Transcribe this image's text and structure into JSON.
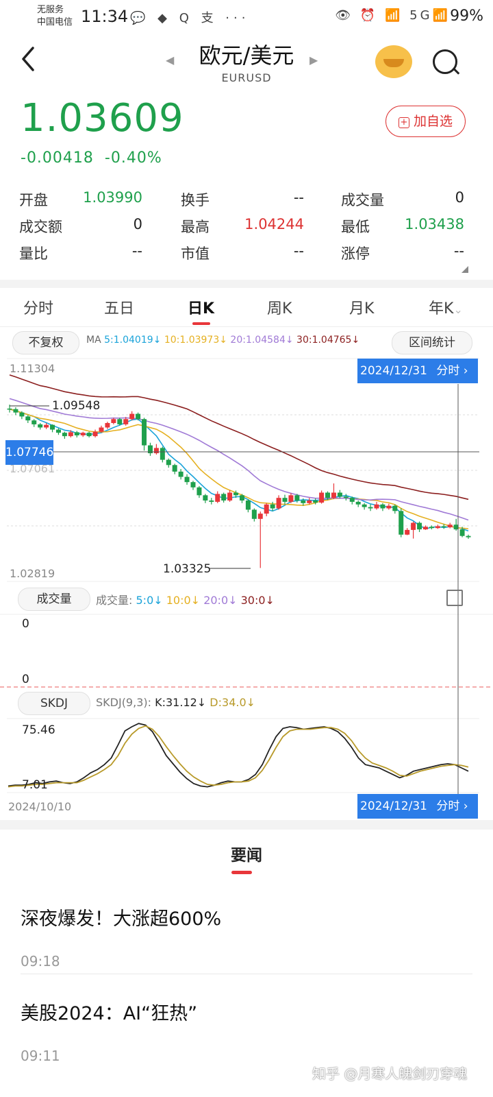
{
  "status_bar": {
    "carrier_top": "无服务",
    "carrier_bottom": "中国电信",
    "time": "11:34",
    "app_icons": "💬 ◆ Q 支 ···",
    "right_icons": "👁 ⏰ 📶 5G📶",
    "battery": "99%"
  },
  "header": {
    "title": "欧元/美元",
    "subtitle": "EURUSD",
    "back_icon": "chevron-left-icon",
    "search_icon": "search-icon"
  },
  "quote": {
    "price": "1.03609",
    "change": "-0.00418",
    "change_pct": "-0.40%",
    "add_label": "加自选",
    "price_color": "#1fa04c"
  },
  "stats": [
    {
      "label": "开盘",
      "value": "1.03990",
      "color": "grn"
    },
    {
      "label": "换手",
      "value": "--",
      "color": ""
    },
    {
      "label": "成交量",
      "value": "0",
      "color": ""
    },
    {
      "label": "成交额",
      "value": "0",
      "color": ""
    },
    {
      "label": "最高",
      "value": "1.04244",
      "color": "red"
    },
    {
      "label": "最低",
      "value": "1.03438",
      "color": "grn"
    },
    {
      "label": "量比",
      "value": "--",
      "color": ""
    },
    {
      "label": "市值",
      "value": "--",
      "color": ""
    },
    {
      "label": "涨停",
      "value": "--",
      "color": ""
    }
  ],
  "tabs": [
    "分时",
    "五日",
    "日K",
    "周K",
    "月K",
    "年K"
  ],
  "active_tab": "日K",
  "chart_controls": {
    "adjust": "不复权",
    "ma_prefix": "MA",
    "ma5": "5:1.04019↓",
    "ma10": "10:1.03973↓",
    "ma20": "20:1.04584↓",
    "ma30": "30:1.04765↓",
    "range_stats": "区间统计"
  },
  "chart_data": {
    "type": "candlestick",
    "date_start": "2024/10/10",
    "date_end": "2024/12/31",
    "y_top": "1.11304",
    "y_bottom": "1.02819",
    "ylim": [
      1.02819,
      1.11304
    ],
    "crosshair_value": "1.07746",
    "hidden_tick": "1.07061",
    "max_label": "1.09548",
    "min_label": "1.03325",
    "cursor_date": "2024/12/31",
    "cursor_link": "分时",
    "ma_colors": {
      "ma5": "#1aa3d9",
      "ma10": "#e5b021",
      "ma20": "#a07ad6",
      "ma30": "#8b1e1e"
    },
    "candles": [
      [
        1.094,
        1.0938,
        1.0955,
        1.0925
      ],
      [
        1.0938,
        1.0925,
        1.0945,
        1.0915
      ],
      [
        1.0925,
        1.091,
        1.093,
        1.09
      ],
      [
        1.091,
        1.0895,
        1.0915,
        1.0885
      ],
      [
        1.0895,
        1.088,
        1.09,
        1.087
      ],
      [
        1.088,
        1.0868,
        1.0885,
        1.086
      ],
      [
        1.0868,
        1.0878,
        1.0885,
        1.0862
      ],
      [
        1.0878,
        1.086,
        1.088,
        1.085
      ],
      [
        1.086,
        1.0848,
        1.0865,
        1.084
      ],
      [
        1.0848,
        1.0835,
        1.0852,
        1.0825
      ],
      [
        1.0835,
        1.085,
        1.0858,
        1.083
      ],
      [
        1.085,
        1.0838,
        1.0855,
        1.083
      ],
      [
        1.0838,
        1.0848,
        1.0852,
        1.0832
      ],
      [
        1.0848,
        1.0835,
        1.0852,
        1.083
      ],
      [
        1.0835,
        1.0852,
        1.086,
        1.083
      ],
      [
        1.0852,
        1.0868,
        1.0875,
        1.0848
      ],
      [
        1.0868,
        1.0885,
        1.089,
        1.0862
      ],
      [
        1.0885,
        1.09,
        1.0905,
        1.088
      ],
      [
        1.09,
        1.088,
        1.0905,
        1.0875
      ],
      [
        1.088,
        1.09,
        1.0908,
        1.0875
      ],
      [
        1.09,
        1.092,
        1.093,
        1.0895
      ],
      [
        1.092,
        1.09,
        1.0925,
        1.0895
      ],
      [
        1.09,
        1.08,
        1.0905,
        1.078
      ],
      [
        1.08,
        1.077,
        1.081,
        1.076
      ],
      [
        1.077,
        1.079,
        1.0805,
        1.0765
      ],
      [
        1.079,
        1.0745,
        1.0795,
        1.0735
      ],
      [
        1.0745,
        1.0725,
        1.075,
        1.0715
      ],
      [
        1.0725,
        1.07,
        1.073,
        1.069
      ],
      [
        1.07,
        1.068,
        1.071,
        1.067
      ],
      [
        1.068,
        1.066,
        1.069,
        1.065
      ],
      [
        1.066,
        1.064,
        1.0665,
        1.063
      ],
      [
        1.064,
        1.061,
        1.0645,
        1.06
      ],
      [
        1.061,
        1.059,
        1.0615,
        1.058
      ],
      [
        1.059,
        1.0585,
        1.06,
        1.0575
      ],
      [
        1.0585,
        1.0615,
        1.0625,
        1.058
      ],
      [
        1.0615,
        1.059,
        1.062,
        1.0582
      ],
      [
        1.059,
        1.062,
        1.063,
        1.0585
      ],
      [
        1.062,
        1.061,
        1.0628,
        1.06
      ],
      [
        1.061,
        1.059,
        1.0615,
        1.058
      ],
      [
        1.059,
        1.0555,
        1.0595,
        1.0545
      ],
      [
        1.0555,
        1.052,
        1.056,
        1.051
      ],
      [
        1.052,
        1.054,
        1.0548,
        1.0333
      ],
      [
        1.054,
        1.0575,
        1.058,
        1.053
      ],
      [
        1.0575,
        1.056,
        1.0585,
        1.055
      ],
      [
        1.056,
        1.06,
        1.061,
        1.0555
      ],
      [
        1.06,
        1.0585,
        1.0612,
        1.0575
      ],
      [
        1.0585,
        1.061,
        1.0618,
        1.058
      ],
      [
        1.061,
        1.059,
        1.0615,
        1.0582
      ],
      [
        1.059,
        1.058,
        1.0598,
        1.057
      ],
      [
        1.058,
        1.059,
        1.06,
        1.0575
      ],
      [
        1.059,
        1.0582,
        1.0598,
        1.0575
      ],
      [
        1.0582,
        1.062,
        1.0628,
        1.0578
      ],
      [
        1.062,
        1.06,
        1.0625,
        1.0592
      ],
      [
        1.06,
        1.062,
        1.0655,
        1.0595
      ],
      [
        1.062,
        1.0605,
        1.063,
        1.0598
      ],
      [
        1.0605,
        1.06,
        1.0615,
        1.059
      ],
      [
        1.06,
        1.0585,
        1.0605,
        1.0575
      ],
      [
        1.0585,
        1.0575,
        1.059,
        1.0565
      ],
      [
        1.0575,
        1.0565,
        1.058,
        1.0555
      ],
      [
        1.0565,
        1.056,
        1.0575,
        1.055
      ],
      [
        1.056,
        1.0575,
        1.0585,
        1.0555
      ],
      [
        1.0575,
        1.056,
        1.058,
        1.055
      ],
      [
        1.056,
        1.057,
        1.0578,
        1.0555
      ],
      [
        1.057,
        1.055,
        1.0575,
        1.054
      ],
      [
        1.055,
        1.046,
        1.056,
        1.045
      ],
      [
        1.046,
        1.0478,
        1.0485,
        1.0458
      ],
      [
        1.0478,
        1.0505,
        1.051,
        1.0445
      ],
      [
        1.0505,
        1.048,
        1.051,
        1.047
      ],
      [
        1.048,
        1.049,
        1.0495,
        1.0478
      ],
      [
        1.049,
        1.0485,
        1.0495,
        1.048
      ],
      [
        1.0485,
        1.0492,
        1.0498,
        1.0482
      ],
      [
        1.0492,
        1.0488,
        1.05,
        1.0482
      ],
      [
        1.0488,
        1.0498,
        1.0505,
        1.0484
      ],
      [
        1.0498,
        1.048,
        1.052,
        1.0475
      ],
      [
        1.048,
        1.0455,
        1.049,
        1.045
      ],
      [
        1.0455,
        1.045,
        1.046,
        1.0444
      ]
    ],
    "volume_panel": {
      "selector": "成交量",
      "label": "成交量:",
      "v5": "5:0↓",
      "v10": "10:0↓",
      "v20": "20:0↓",
      "v30": "30:0↓",
      "top": "0",
      "bottom": "0"
    },
    "skdj_panel": {
      "selector": "SKDJ",
      "label": "SKDJ(9,3):",
      "k_label": "K:31.12↓",
      "d_label": "D:34.0↓",
      "top": "75.46",
      "bottom": "7.01",
      "k": [
        8,
        9,
        9,
        10,
        12,
        11,
        13,
        14,
        12,
        11,
        13,
        18,
        24,
        28,
        34,
        42,
        58,
        75,
        80,
        84,
        82,
        74,
        60,
        45,
        35,
        25,
        17,
        11,
        8,
        7,
        9,
        12,
        14,
        13,
        13,
        16,
        22,
        34,
        52,
        68,
        78,
        80,
        79,
        77,
        78,
        79,
        80,
        78,
        74,
        66,
        55,
        42,
        34,
        32,
        30,
        26,
        22,
        18,
        21,
        26,
        28,
        30,
        32,
        34,
        35,
        34,
        30,
        26
      ],
      "d": [
        7,
        8,
        8,
        9,
        10,
        10,
        11,
        12,
        12,
        12,
        12,
        15,
        19,
        23,
        28,
        34,
        45,
        60,
        71,
        78,
        81,
        77,
        68,
        56,
        45,
        35,
        26,
        19,
        14,
        10,
        9,
        10,
        12,
        13,
        13,
        14,
        18,
        27,
        40,
        55,
        68,
        75,
        77,
        77,
        77,
        78,
        79,
        79,
        77,
        72,
        63,
        51,
        42,
        36,
        33,
        30,
        26,
        21,
        20,
        23,
        26,
        28,
        30,
        32,
        33,
        34,
        33,
        31
      ]
    }
  },
  "news": {
    "section_title": "要闻",
    "items": [
      {
        "title": "深夜爆发！大涨超600%",
        "time": "09:18"
      },
      {
        "title": "美股2024：AI“狂热”",
        "time": "09:11"
      }
    ]
  },
  "watermark": "知乎 @月寒人魄剑刃穿魂"
}
